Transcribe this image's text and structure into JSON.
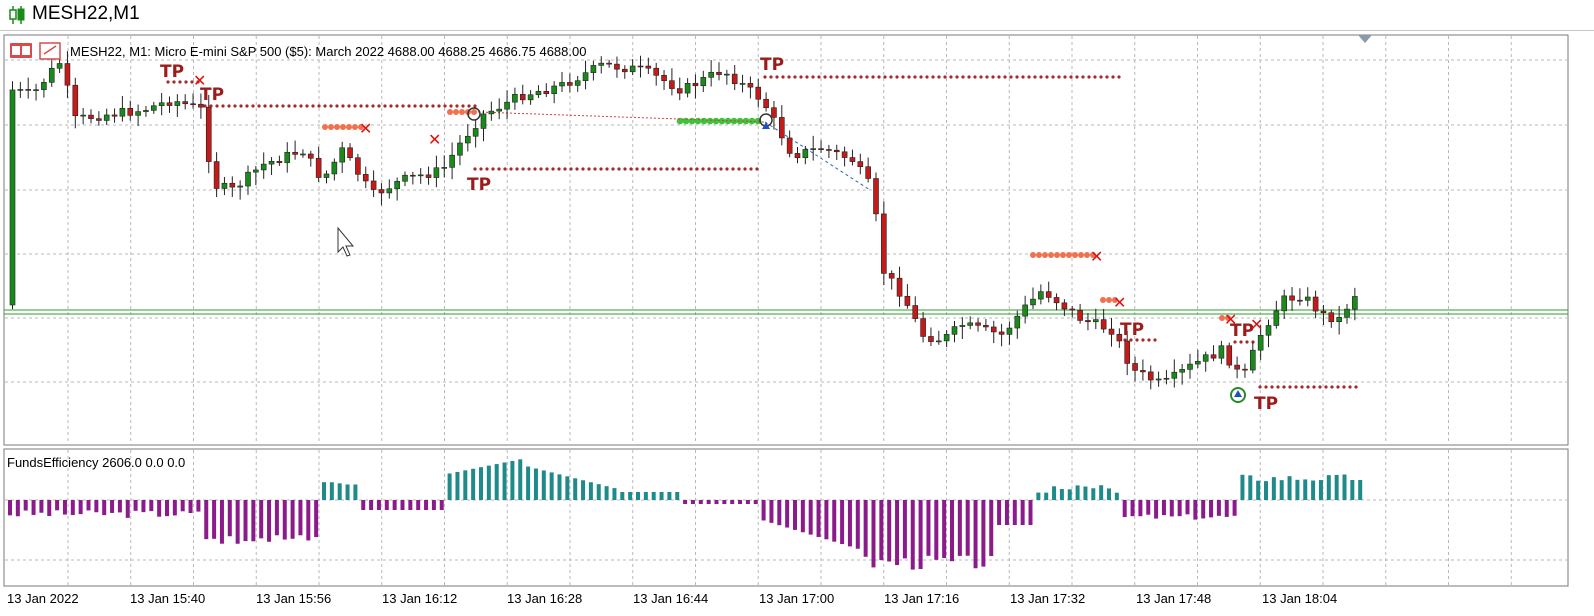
{
  "window": {
    "title": "MESH22,M1"
  },
  "main_panel": {
    "info_text": "MESH22, M1:  Micro E-mini S&P 500 ($5): March 2022  4688.00 4688.25 4686.75 4688.00"
  },
  "indicator_panel": {
    "info_text": "FundsEfficiency 2606.0 0.0 0.0"
  },
  "chart_data": [
    {
      "type": "candlestick",
      "symbol": "MESH22",
      "timeframe": "M1",
      "x_axis_labels": [
        "13 Jan 2022",
        "13 Jan 15:40",
        "13 Jan 15:56",
        "13 Jan 16:12",
        "13 Jan 16:28",
        "13 Jan 16:44",
        "13 Jan 17:00",
        "13 Jan 17:16",
        "13 Jan 17:32",
        "13 Jan 17:48",
        "13 Jan 18:04"
      ],
      "last_price": {
        "open": 4688.0,
        "high": 4688.25,
        "low": 4686.75,
        "close": 4688.0
      },
      "colors": {
        "bull": "#1a8a1a",
        "bear": "#c41a1a",
        "price_line": "#2e9e2e"
      },
      "trade_markers": {
        "tp_label": "TP",
        "stop_marker": "✕"
      },
      "grid": true
    },
    {
      "type": "bar",
      "name": "FundsEfficiency",
      "values_shown": [
        2606.0,
        0.0,
        0.0
      ],
      "colors": {
        "positive": "#1f8a8a",
        "negative": "#8b1a8b"
      },
      "grid": true
    }
  ]
}
